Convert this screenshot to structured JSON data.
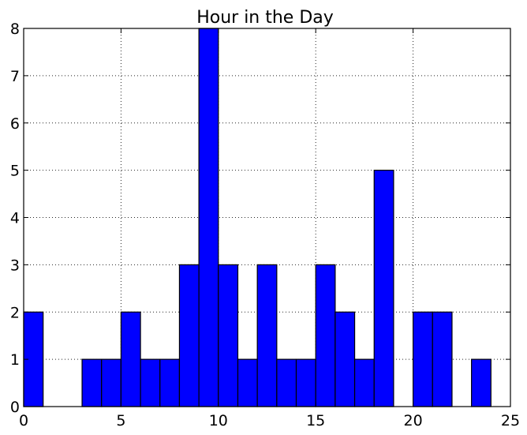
{
  "chart_data": {
    "type": "bar",
    "title": "Hour in the Day",
    "xlabel": "",
    "ylabel": "",
    "bin_width": 1,
    "x": [
      0,
      1,
      2,
      3,
      4,
      5,
      6,
      7,
      8,
      9,
      10,
      11,
      12,
      13,
      14,
      15,
      16,
      17,
      18,
      19,
      20,
      21,
      22,
      23
    ],
    "values": [
      2,
      0,
      0,
      1,
      1,
      2,
      1,
      1,
      3,
      8,
      3,
      1,
      3,
      1,
      1,
      3,
      2,
      1,
      5,
      0,
      2,
      2,
      0,
      1
    ],
    "xlim": [
      0,
      25
    ],
    "ylim": [
      0,
      8
    ],
    "xticks": [
      "0",
      "5",
      "10",
      "15",
      "20",
      "25"
    ],
    "yticks": [
      "0",
      "1",
      "2",
      "3",
      "4",
      "5",
      "6",
      "7",
      "8"
    ],
    "grid": true,
    "bar_color": "#0000ff",
    "edge_color": "#000000"
  }
}
